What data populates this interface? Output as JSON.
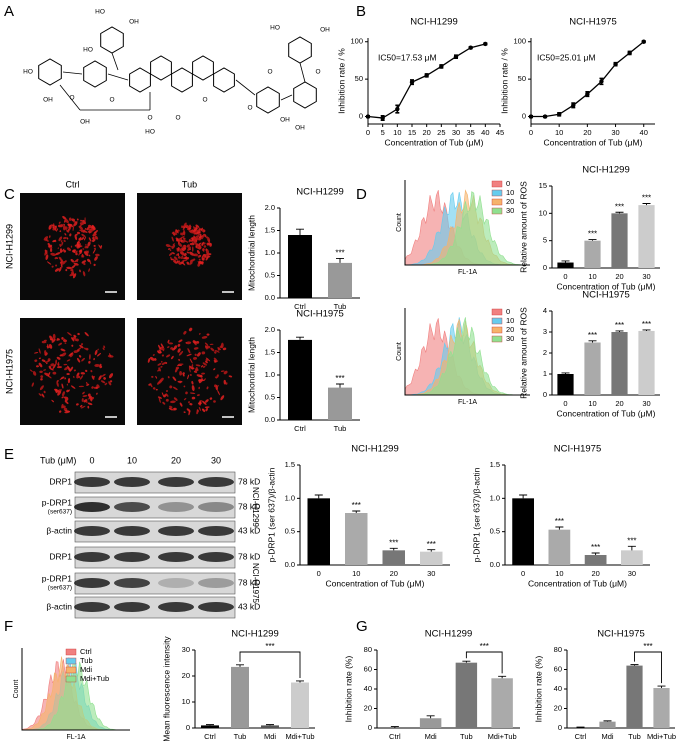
{
  "panels": [
    "A",
    "B",
    "C",
    "D",
    "E",
    "F",
    "G"
  ],
  "structure_labels": [
    "HO",
    "OH",
    "O",
    "HO",
    "OH",
    "HO",
    "OH",
    "O",
    "O",
    "O",
    "HO",
    "O",
    "O",
    "O",
    "OH",
    "OH",
    "HO",
    "OH",
    "O"
  ],
  "micrographs": {
    "columns": [
      "Ctrl",
      "Tub"
    ],
    "rows": [
      "NCI-H1299",
      "NCI-H1975"
    ]
  },
  "flow": [
    {
      "legend": [
        "0",
        "10",
        "20",
        "30"
      ],
      "colors": [
        "#f08080",
        "#66ccee",
        "#f5b36b",
        "#90e090"
      ],
      "ylabel": "Count",
      "xlabel": "FL-1A"
    },
    {
      "legend": [
        "0",
        "10",
        "20",
        "30"
      ],
      "colors": [
        "#f08080",
        "#66ccee",
        "#f5b36b",
        "#90e090"
      ],
      "ylabel": "Count",
      "xlabel": "FL-1A"
    },
    {
      "legend": [
        "Ctrl",
        "Tub",
        "Mdi",
        "Mdi+Tub"
      ],
      "colors": [
        "#f08080",
        "#66ccee",
        "#f5b36b",
        "#90e090"
      ],
      "ylabel": "Count",
      "xlabel": "FL-1A"
    }
  ],
  "blot": {
    "treatment": "Tub (μM)",
    "doses": [
      "0",
      "10",
      "20",
      "30"
    ],
    "groups": [
      "NCI-H1299",
      "NCI-H1975"
    ],
    "rows": [
      {
        "name": "DRP1",
        "size": "78 kD"
      },
      {
        "name": "p-DRP1",
        "sub": "(ser637)",
        "size": "78 kD"
      },
      {
        "name": "β-actin",
        "size": "43 kD"
      },
      {
        "name": "DRP1",
        "size": "78 kD"
      },
      {
        "name": "p-DRP1",
        "sub": "(ser637)",
        "size": "78 kD"
      },
      {
        "name": "β-actin",
        "size": "43 kD"
      }
    ]
  },
  "chart_data": [
    {
      "type": "line",
      "title": "NCI-H1299",
      "x": [
        0,
        5,
        10,
        15,
        20,
        25,
        30,
        35,
        40
      ],
      "values": [
        0,
        -2,
        10,
        46,
        55,
        67,
        80,
        92,
        97
      ],
      "errors": [
        1,
        3,
        5,
        3,
        2,
        2,
        2,
        1,
        1
      ],
      "annotation": "IC50=17.53 μM",
      "xlabel": "Concentration of Tub (μM)",
      "ylabel": "Inhibition rate / %",
      "color": "#000000",
      "xlim": [
        0,
        45
      ],
      "xticks": [
        0,
        5,
        10,
        15,
        20,
        25,
        30,
        35,
        40,
        45
      ],
      "ylim": [
        -10,
        105
      ],
      "yticks": [
        0,
        50,
        100
      ]
    },
    {
      "type": "line",
      "title": "NCI-H1975",
      "x": [
        0,
        5,
        10,
        15,
        20,
        25,
        30,
        35,
        40
      ],
      "values": [
        0,
        0,
        3,
        15,
        30,
        47,
        70,
        85,
        100
      ],
      "errors": [
        1,
        1,
        2,
        3,
        3,
        4,
        2,
        2,
        1
      ],
      "annotation": "IC50=25.01 μM",
      "xlabel": "Concentration of Tub (μM)",
      "ylabel": "Inhibition rate / %",
      "color": "#000000",
      "xlim": [
        0,
        44
      ],
      "xticks": [
        0,
        10,
        20,
        30,
        40
      ],
      "ylim": [
        -10,
        105
      ],
      "yticks": [
        0,
        50,
        100
      ]
    },
    {
      "type": "bar",
      "title": "NCI-H1299",
      "categories": [
        "Ctrl",
        "Tub"
      ],
      "values": [
        1.4,
        0.78
      ],
      "errors": [
        0.13,
        0.1
      ],
      "annotations": [
        null,
        "***"
      ],
      "colors": [
        "#000000",
        "#999999"
      ],
      "ylabel": "Mitochondrial length",
      "ylim": [
        0,
        2
      ],
      "yticks": [
        {
          "value": 0,
          "label": "0.0"
        },
        {
          "value": 0.5,
          "label": "0.5"
        },
        {
          "value": 1,
          "label": "1.0"
        },
        {
          "value": 1.5,
          "label": "1.5"
        },
        {
          "value": 2,
          "label": "2.0"
        }
      ]
    },
    {
      "type": "bar",
      "title": "NCI-H1975",
      "categories": [
        "Ctrl",
        "Tub"
      ],
      "values": [
        1.78,
        0.72
      ],
      "errors": [
        0.06,
        0.08
      ],
      "annotations": [
        null,
        "***"
      ],
      "colors": [
        "#000000",
        "#999999"
      ],
      "ylabel": "Mitochondrial length",
      "ylim": [
        0,
        2
      ],
      "yticks": [
        {
          "value": 0,
          "label": "0.0"
        },
        {
          "value": 0.5,
          "label": "0.5"
        },
        {
          "value": 1,
          "label": "1.0"
        },
        {
          "value": 1.5,
          "label": "1.5"
        },
        {
          "value": 2,
          "label": "2.0"
        }
      ]
    },
    {
      "type": "bar",
      "title": "NCI-H1299",
      "categories": [
        "0",
        "10",
        "20",
        "30"
      ],
      "values": [
        1,
        5,
        10,
        11.5
      ],
      "errors": [
        0.3,
        0.2,
        0.2,
        0.3
      ],
      "annotations": [
        null,
        "***",
        "***",
        "***"
      ],
      "colors": [
        "#000000",
        "#aaaaaa",
        "#777777",
        "#cccccc"
      ],
      "ylabel": "Relative amount of ROS",
      "xlabel": "Concentration of Tub (μM)",
      "ylim": [
        0,
        15
      ],
      "yticks": [
        0,
        5,
        10,
        15
      ]
    },
    {
      "type": "bar",
      "title": "NCI-H1975",
      "categories": [
        "0",
        "10",
        "20",
        "30"
      ],
      "values": [
        1,
        2.5,
        3,
        3.05
      ],
      "errors": [
        0.05,
        0.08,
        0.05,
        0.05
      ],
      "annotations": [
        null,
        "***",
        "***",
        "***"
      ],
      "colors": [
        "#000000",
        "#aaaaaa",
        "#777777",
        "#cccccc"
      ],
      "ylabel": "Relative amount of ROS",
      "xlabel": "Concentration of Tub (μM)",
      "ylim": [
        0,
        4
      ],
      "yticks": [
        0,
        1,
        2,
        3,
        4
      ]
    },
    {
      "type": "bar",
      "title": "NCI-H1299",
      "categories": [
        "0",
        "10",
        "20",
        "30"
      ],
      "values": [
        1,
        0.78,
        0.22,
        0.2
      ],
      "errors": [
        0.05,
        0.03,
        0.03,
        0.03
      ],
      "annotations": [
        null,
        "***",
        "***",
        "***"
      ],
      "colors": [
        "#000000",
        "#aaaaaa",
        "#777777",
        "#cccccc"
      ],
      "ylabel": "p-DRP1 (ser 637)/β-actin",
      "xlabel": "Concentration of Tub (μM)",
      "ylim": [
        0,
        1.5
      ],
      "yticks": [
        {
          "value": 0,
          "label": "0.0"
        },
        {
          "value": 0.5,
          "label": "0.5"
        },
        {
          "value": 1,
          "label": "1.0"
        },
        {
          "value": 1.5,
          "label": "1.5"
        }
      ]
    },
    {
      "type": "bar",
      "title": "NCI-H1975",
      "categories": [
        "0",
        "10",
        "20",
        "30"
      ],
      "values": [
        1,
        0.53,
        0.15,
        0.22
      ],
      "errors": [
        0.05,
        0.04,
        0.03,
        0.06
      ],
      "annotations": [
        null,
        "***",
        "***",
        "***"
      ],
      "colors": [
        "#000000",
        "#aaaaaa",
        "#777777",
        "#cccccc"
      ],
      "ylabel": "p-DRP1 (ser 637)/β-actin",
      "xlabel": "Concentration of Tub (μM)",
      "ylim": [
        0,
        1.5
      ],
      "yticks": [
        {
          "value": 0,
          "label": "0.0"
        },
        {
          "value": 0.5,
          "label": "0.5"
        },
        {
          "value": 1,
          "label": "1.0"
        },
        {
          "value": 1.5,
          "label": "1.5"
        }
      ]
    },
    {
      "type": "bar",
      "title": "NCI-H1299",
      "categories": [
        "Ctrl",
        "Tub",
        "Mdi",
        "Mdi+Tub"
      ],
      "values": [
        1,
        23.5,
        1,
        17.5
      ],
      "errors": [
        0.3,
        0.8,
        0.3,
        0.6
      ],
      "colors": [
        "#000000",
        "#999999",
        "#555555",
        "#cccccc"
      ],
      "ylabel": "Mean fluorescence intensity",
      "ylim": [
        0,
        30
      ],
      "yticks": [
        0,
        10,
        20,
        30
      ],
      "bracket": "***"
    },
    {
      "type": "bar",
      "title": "NCI-H1299",
      "categories": [
        "Ctrl",
        "Mdi",
        "Tub",
        "Mdi+Tub"
      ],
      "values": [
        0.5,
        10,
        67,
        51
      ],
      "errors": [
        1,
        2.5,
        1.5,
        2
      ],
      "colors": [
        "#000000",
        "#999999",
        "#777777",
        "#aaaaaa"
      ],
      "ylabel": "Inhibition rate (%)",
      "ylim": [
        0,
        80
      ],
      "yticks": [
        0,
        20,
        40,
        60,
        80
      ],
      "bracket": "***"
    },
    {
      "type": "bar",
      "title": "NCI-H1975",
      "categories": [
        "Ctrl",
        "Mdi",
        "Tub",
        "Mdi+Tub"
      ],
      "values": [
        0.5,
        6.5,
        64,
        41
      ],
      "errors": [
        0.5,
        0.8,
        1,
        2
      ],
      "colors": [
        "#000000",
        "#999999",
        "#777777",
        "#aaaaaa"
      ],
      "ylabel": "Inhibition rate (%)",
      "ylim": [
        0,
        80
      ],
      "yticks": [
        0,
        20,
        40,
        60,
        80
      ],
      "bracket": "***"
    }
  ]
}
